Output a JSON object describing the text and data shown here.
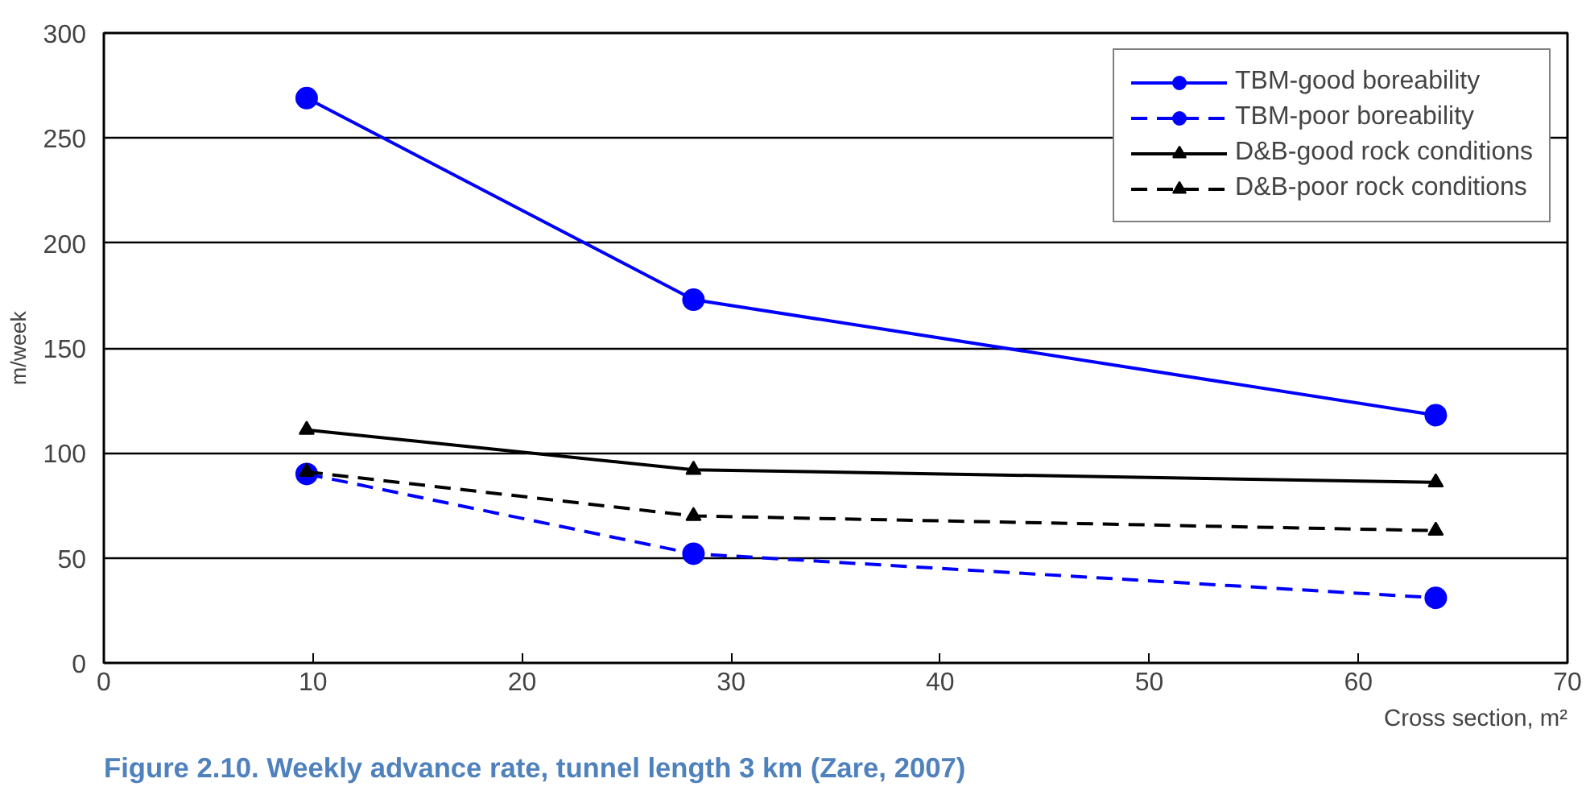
{
  "chart_data": {
    "type": "line",
    "xlabel": "Cross section, m²",
    "ylabel": "m/week",
    "annotations": [
      "Figure 2.10. Weekly advance rate, tunnel length 3 km (Zare, 2007)"
    ],
    "x": [
      9.7,
      28.2,
      63.7
    ],
    "series": [
      {
        "name": "TBM-good boreability",
        "color": "#0000ff",
        "values": [
          269,
          173,
          118
        ],
        "marker": "circle",
        "line_style": "solid"
      },
      {
        "name": "TBM-poor boreability",
        "color": "#0000ff",
        "values": [
          90,
          52,
          31
        ],
        "marker": "circle",
        "line_style": "dashed"
      },
      {
        "name": "D&B-good rock conditions",
        "color": "#000000",
        "values": [
          111,
          92,
          86
        ],
        "marker": "triangle",
        "line_style": "solid"
      },
      {
        "name": "D&B-poor rock conditions",
        "color": "#000000",
        "values": [
          91,
          70,
          63
        ],
        "marker": "triangle",
        "line_style": "dashed"
      }
    ],
    "xlim": [
      0,
      70
    ],
    "xticks": [
      0,
      10,
      20,
      30,
      40,
      50,
      60,
      70
    ],
    "ylim": [
      0,
      300
    ],
    "yticks": [
      0,
      50,
      100,
      150,
      200,
      250,
      300
    ],
    "grid": "y",
    "legend": "top right"
  }
}
